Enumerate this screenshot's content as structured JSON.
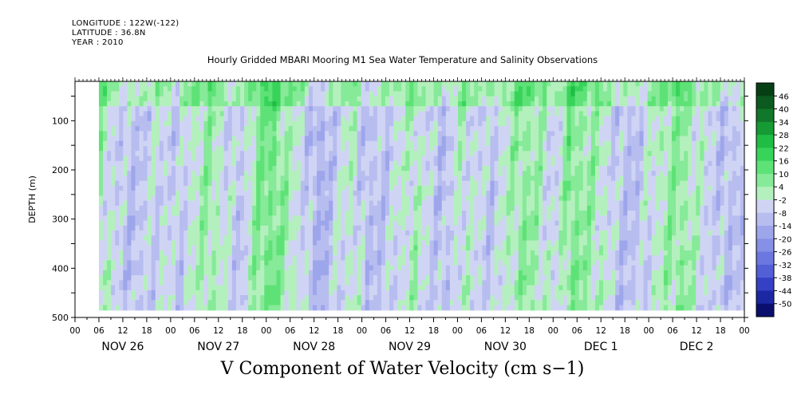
{
  "header": {
    "longitude": "LONGITUDE : 122W(-122)",
    "latitude": "LATITUDE : 36.8N",
    "year": "YEAR : 2010"
  },
  "chart_data": {
    "type": "heatmap",
    "title": "Hourly Gridded MBARI Mooring M1 Sea Water Temperature and Salinity Observations",
    "xlabel": "V Component of Water Velocity (cm s−1)",
    "ylabel": "DEPTH (m)",
    "y_range": [
      500,
      20
    ],
    "y_ticks": [
      100,
      200,
      300,
      400,
      500
    ],
    "x_hour_ticks": [
      "00",
      "06",
      "12",
      "18",
      "00",
      "06",
      "12",
      "18",
      "00",
      "06",
      "12",
      "18",
      "00",
      "06",
      "12",
      "18",
      "00",
      "06",
      "12",
      "18",
      "00",
      "06",
      "12",
      "18",
      "00",
      "06",
      "12",
      "18",
      "00"
    ],
    "x_day_labels": [
      "NOV 26",
      "NOV 27",
      "NOV 28",
      "NOV 29",
      "NOV 30",
      "DEC  1",
      "DEC  2"
    ],
    "data_x_range_hours": [
      6,
      168
    ],
    "data_y_range": [
      20,
      485
    ],
    "colorbar_levels": [
      46,
      40,
      34,
      28,
      22,
      16,
      10,
      4,
      -2,
      -8,
      -14,
      -20,
      -26,
      -32,
      -38,
      -44,
      -50
    ],
    "approx_column_means_cm_s": [
      2,
      -6,
      -10,
      -6,
      -4,
      -8,
      0,
      4,
      -4,
      -8,
      6,
      10,
      2,
      -6,
      -14,
      -6,
      0,
      -10,
      -8,
      -4,
      2,
      -6,
      -10,
      0,
      -4,
      -8,
      0,
      6,
      2,
      -6,
      8,
      4,
      0,
      -8,
      -10,
      -4,
      2,
      6,
      0,
      -6,
      -10,
      -8
    ]
  }
}
